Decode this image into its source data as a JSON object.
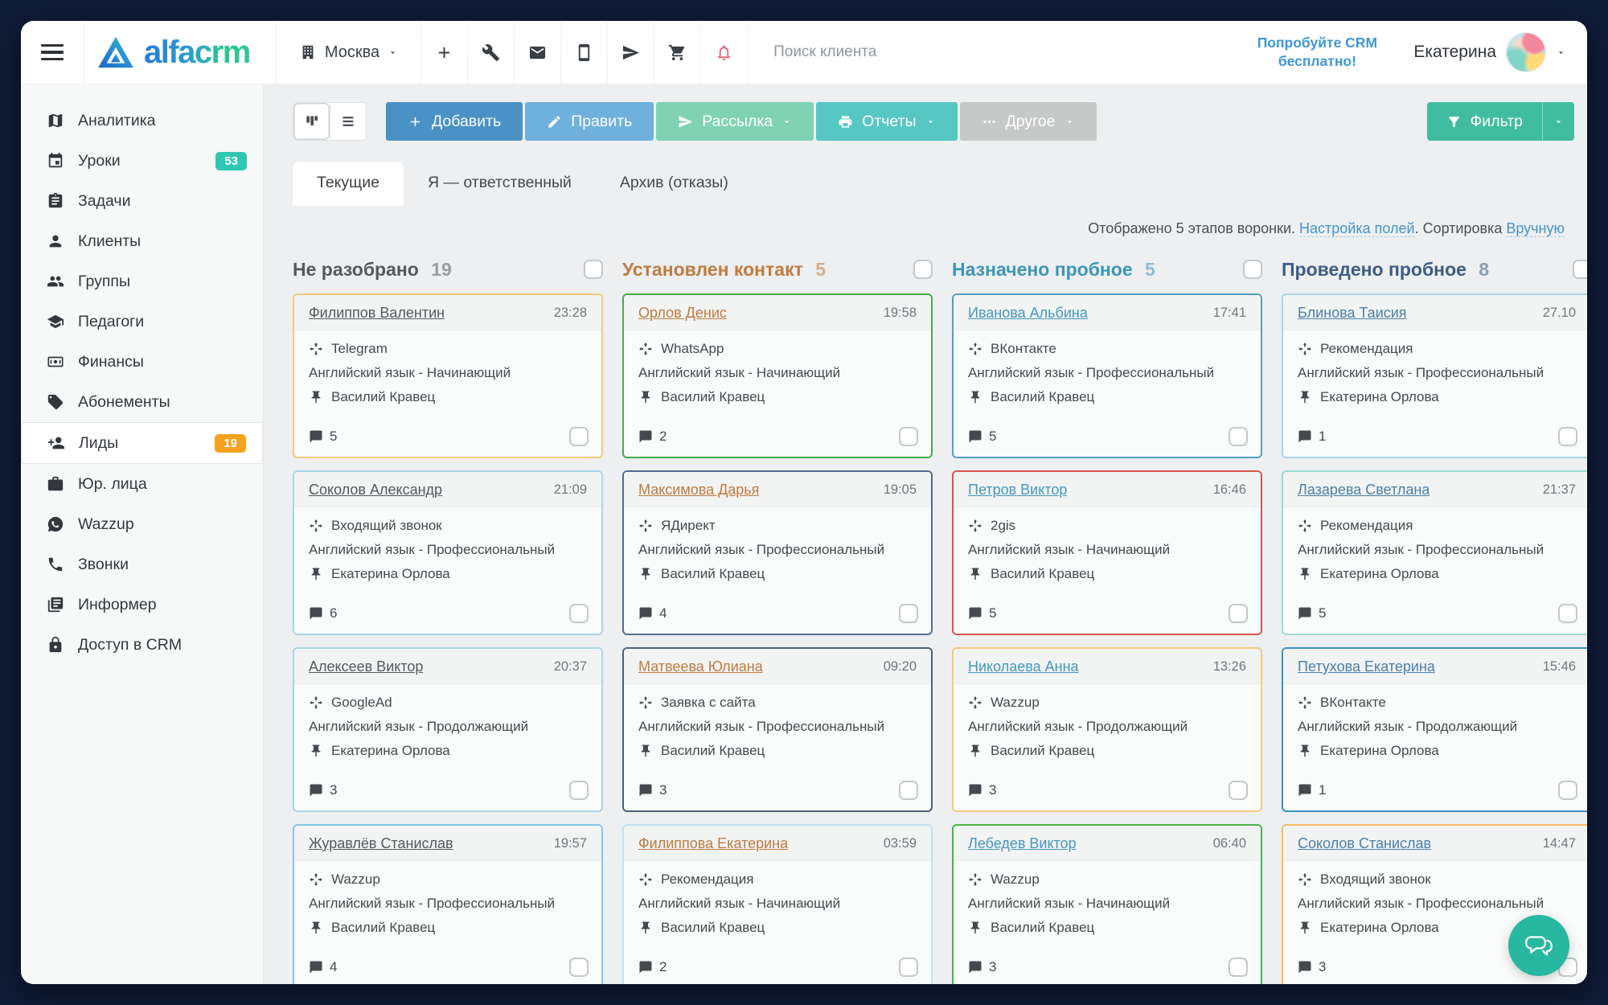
{
  "header": {
    "logo_text": "alfacrm",
    "branch_label": "Москва",
    "icon_buttons": [
      {
        "id": "quick-add",
        "icon": "plus"
      },
      {
        "id": "settings",
        "icon": "wrench"
      },
      {
        "id": "mail",
        "icon": "envelope"
      },
      {
        "id": "mobile-app",
        "icon": "mobile"
      },
      {
        "id": "telegram",
        "icon": "send"
      },
      {
        "id": "shop",
        "icon": "cart"
      },
      {
        "id": "notifications",
        "icon": "bell",
        "color": "#e4697d"
      }
    ],
    "search_placeholder": "Поиск клиента",
    "promo": "Попробуйте CRM бесплатно!",
    "user_name": "Екатерина"
  },
  "sidebar": {
    "items": [
      {
        "id": "analytics",
        "label": "Аналитика",
        "icon": "map"
      },
      {
        "id": "lessons",
        "label": "Уроки",
        "icon": "calendar",
        "badge": "53",
        "badge_color": "#2fc7b2"
      },
      {
        "id": "tasks",
        "label": "Задачи",
        "icon": "clipboard"
      },
      {
        "id": "clients",
        "label": "Клиенты",
        "icon": "person"
      },
      {
        "id": "groups",
        "label": "Группы",
        "icon": "people"
      },
      {
        "id": "teachers",
        "label": "Педагоги",
        "icon": "school"
      },
      {
        "id": "finance",
        "label": "Финансы",
        "icon": "banknote"
      },
      {
        "id": "subscriptions",
        "label": "Абонементы",
        "icon": "tag"
      },
      {
        "id": "leads",
        "label": "Лиды",
        "icon": "person-add",
        "badge": "19",
        "badge_color": "#f6a21e",
        "active": true
      },
      {
        "id": "legal-entities",
        "label": "Юр. лица",
        "icon": "briefcase"
      },
      {
        "id": "wazzup",
        "label": "Wazzup",
        "icon": "whatsapp"
      },
      {
        "id": "calls",
        "label": "Звонки",
        "icon": "phone"
      },
      {
        "id": "informer",
        "label": "Информер",
        "icon": "news"
      },
      {
        "id": "crm-access",
        "label": "Доступ в CRM",
        "icon": "lock"
      }
    ]
  },
  "toolbar": {
    "view_toggles": [
      {
        "id": "kanban-view",
        "icon": "kanban",
        "active": true
      },
      {
        "id": "list-view",
        "icon": "list",
        "active": false
      }
    ],
    "buttons": [
      {
        "id": "add",
        "label": "Добавить",
        "icon": "plus",
        "color": "#4a91c6",
        "caret": false
      },
      {
        "id": "edit",
        "label": "Править",
        "icon": "pencil",
        "color": "#6fb1dc",
        "caret": false
      },
      {
        "id": "mailing",
        "label": "Рассылка",
        "icon": "send",
        "color": "#7fd3b4",
        "caret": true
      },
      {
        "id": "reports",
        "label": "Отчеты",
        "icon": "printer",
        "color": "#57c7c3",
        "caret": true
      },
      {
        "id": "other",
        "label": "Другое",
        "icon": "ellipsis",
        "color": "#c7c9c9",
        "caret": true
      }
    ],
    "filter": {
      "label": "Фильтр",
      "color": "#40bd9e"
    }
  },
  "tabs": [
    {
      "id": "current",
      "label": "Текущие",
      "active": true
    },
    {
      "id": "responsible",
      "label": "Я — ответственный",
      "active": false
    },
    {
      "id": "archive",
      "label": "Архив (отказы)",
      "active": false
    }
  ],
  "status": {
    "prefix": "Отображено 5 этапов воронки. ",
    "fields_link": "Настройка полей",
    "middle": ". Сортировка ",
    "sort_link": "Вручную"
  },
  "board": {
    "columns": [
      {
        "title": "Не разобрано",
        "count": "19",
        "color": "#55595e",
        "link_color": "#55595e",
        "cards": [
          {
            "name": "Филиппов Валентин",
            "time": "23:28",
            "source": "Telegram",
            "subject": "Английский язык - Начинающий",
            "manager": "Василий Кравец",
            "comments": "5",
            "border": "#f2ca7d"
          },
          {
            "name": "Соколов Александр",
            "time": "21:09",
            "source": "Входящий звонок",
            "subject": "Английский язык - Профессиональный",
            "manager": "Екатерина Орлова",
            "comments": "6",
            "border": "#abd3e6"
          },
          {
            "name": "Алексеев Виктор",
            "time": "20:37",
            "source": "GoogleAd",
            "subject": "Английский язык - Продолжающий",
            "manager": "Екатерина Орлова",
            "comments": "3",
            "border": "#abd3e6"
          },
          {
            "name": "Журавлёв Станислав",
            "time": "19:57",
            "source": "Wazzup",
            "subject": "Английский язык - Профессиональный",
            "manager": "Василий Кравец",
            "comments": "4",
            "border": "#84c5de"
          }
        ]
      },
      {
        "title": "Установлен контакт",
        "count": "5",
        "color": "#bf7b3f",
        "link_color": "#bf7b3f",
        "cards": [
          {
            "name": "Орлов Денис",
            "time": "19:58",
            "source": "WhatsApp",
            "subject": "Английский язык - Начинающий",
            "manager": "Василий Кравец",
            "comments": "2",
            "border": "#42ae4a"
          },
          {
            "name": "Максимова Дарья",
            "time": "19:05",
            "source": "ЯДирект",
            "subject": "Английский язык - Профессиональный",
            "manager": "Василий Кравец",
            "comments": "4",
            "border": "#526c8e"
          },
          {
            "name": "Матвеева Юлиана",
            "time": "09:20",
            "source": "Заявка с сайта",
            "subject": "Английский язык - Профессиональный",
            "manager": "Василий Кравец",
            "comments": "3",
            "border": "#4d5f79"
          },
          {
            "name": "Филиппова Екатерина",
            "time": "03:59",
            "source": "Рекомендация",
            "subject": "Английский язык - Начинающий",
            "manager": "Василий Кравец",
            "comments": "2",
            "border": "#bfe2ef"
          }
        ]
      },
      {
        "title": "Назначено пробное",
        "count": "5",
        "color": "#3e95b8",
        "link_color": "#4598bd",
        "cards": [
          {
            "name": "Иванова Альбина",
            "time": "17:41",
            "source": "ВКонтакте",
            "subject": "Английский язык - Профессиональный",
            "manager": "Василий Кравец",
            "comments": "5",
            "border": "#559fc4"
          },
          {
            "name": "Петров Виктор",
            "time": "16:46",
            "source": "2gis",
            "subject": "Английский язык - Начинающий",
            "manager": "Василий Кравец",
            "comments": "5",
            "border": "#d9534f"
          },
          {
            "name": "Николаева Анна",
            "time": "13:26",
            "source": "Wazzup",
            "subject": "Английский язык - Продолжающий",
            "manager": "Василий Кравец",
            "comments": "3",
            "border": "#f2ca7d"
          },
          {
            "name": "Лебедев Виктор",
            "time": "06:40",
            "source": "Wazzup",
            "subject": "Английский язык - Начинающий",
            "manager": "Василий Кравец",
            "comments": "3",
            "border": "#47b34e"
          }
        ]
      },
      {
        "title": "Проведено пробное",
        "count": "8",
        "color": "#3e5c84",
        "link_color": "#4a7fa8",
        "cards": [
          {
            "name": "Блинова Таисия",
            "time": "27.10",
            "source": "Рекомендация",
            "subject": "Английский язык - Профессиональный",
            "manager": "Екатерина Орлова",
            "comments": "1",
            "border": "#abd3e6"
          },
          {
            "name": "Лазарева Светлана",
            "time": "21:37",
            "source": "Рекомендация",
            "subject": "Английский язык - Профессиональный",
            "manager": "Екатерина Орлова",
            "comments": "5",
            "border": "#9fd9d2"
          },
          {
            "name": "Петухова Екатерина",
            "time": "15:46",
            "source": "ВКонтакте",
            "subject": "Английский язык - Продолжающий",
            "manager": "Екатерина Орлова",
            "comments": "1",
            "border": "#3a8fc7"
          },
          {
            "name": "Соколов Станислав",
            "time": "14:47",
            "source": "Входящий звонок",
            "subject": "Английский язык - Профессиональный",
            "manager": "Екатерина Орлова",
            "comments": "3",
            "border": "#f3bc64"
          }
        ]
      }
    ]
  }
}
